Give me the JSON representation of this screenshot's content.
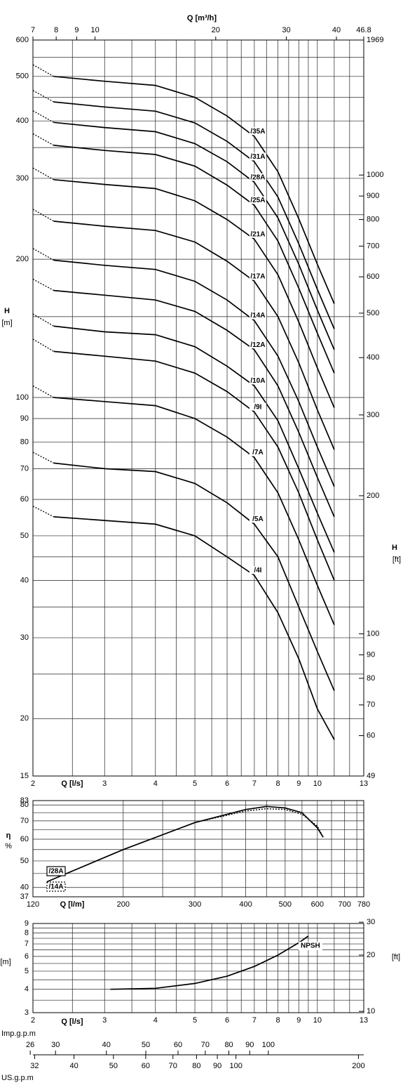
{
  "chart_data": [
    {
      "type": "line",
      "x_label": "Q [l/s]",
      "x2_label": "Q [m³/h]",
      "y_label": "H",
      "y_unit": "[m]",
      "y2_label": "H",
      "y2_unit": "[ft]",
      "log_x": true,
      "log_y": true,
      "color": "#000000",
      "lead_in_style": "dotted",
      "series_labels": "on_curve",
      "xlim": [
        2,
        13
      ],
      "xticks": [
        2,
        3,
        4,
        5,
        6,
        7,
        8,
        9,
        10,
        13
      ],
      "x_minor_grid": [
        2.5,
        3.5,
        4.5,
        5.5,
        6.5,
        7.5,
        8.5,
        9.5,
        11,
        12
      ],
      "x2lim": [
        7,
        46.8
      ],
      "x2ticks": [
        7,
        8,
        9,
        10,
        20,
        30,
        40,
        46.8
      ],
      "ylim": [
        15,
        600
      ],
      "yticks": [
        15,
        20,
        30,
        40,
        50,
        60,
        70,
        80,
        90,
        100,
        200,
        300,
        400,
        500,
        600
      ],
      "y_minor_grid": [
        25,
        35,
        45,
        150,
        250,
        350,
        450,
        550
      ],
      "y2lim": [
        49,
        1969
      ],
      "y2ticks": [
        49,
        60,
        70,
        80,
        90,
        100,
        200,
        300,
        400,
        500,
        600,
        700,
        800,
        900,
        1000,
        1969
      ],
      "x": [
        2,
        2.25,
        3,
        4,
        5,
        6,
        7,
        8,
        9,
        10,
        11
      ],
      "series": [
        {
          "name": "/35A",
          "values": [
            530,
            500,
            488,
            478,
            450,
            410,
            370,
            310,
            245,
            195,
            160
          ]
        },
        {
          "name": "/31A",
          "values": [
            466,
            440,
            429,
            420,
            396,
            361,
            326,
            273,
            216,
            172,
            141
          ]
        },
        {
          "name": "/28A",
          "values": [
            421,
            397,
            387,
            379,
            357,
            326,
            294,
            246,
            195,
            155,
            127
          ]
        },
        {
          "name": "/25A",
          "values": [
            375,
            354,
            345,
            338,
            319,
            290,
            262,
            219,
            173,
            138,
            113
          ]
        },
        {
          "name": "/21A",
          "values": [
            316,
            298,
            291,
            285,
            268,
            244,
            221,
            185,
            146,
            116,
            95
          ]
        },
        {
          "name": "/17A",
          "values": [
            257,
            242,
            236,
            231,
            218,
            198,
            179,
            150,
            119,
            94,
            77
          ]
        },
        {
          "name": "/14A",
          "values": [
            211,
            199,
            194,
            190,
            179,
            163,
            147,
            123,
            98,
            78,
            64
          ]
        },
        {
          "name": "/12A",
          "values": [
            181,
            171,
            167,
            163,
            154,
            140,
            127,
            106,
            84,
            67,
            55
          ]
        },
        {
          "name": "/10A",
          "values": [
            152,
            143,
            139,
            137,
            129,
            117,
            106,
            89,
            70,
            56,
            46
          ]
        },
        {
          "name": "/9I",
          "values": [
            134,
            126,
            123,
            120,
            113,
            103,
            93,
            78,
            62,
            49,
            40
          ]
        },
        {
          "name": "/7A",
          "values": [
            106,
            100,
            98,
            96,
            90,
            82,
            74,
            62,
            49,
            39,
            32
          ]
        },
        {
          "name": "/5A",
          "values": [
            76,
            72,
            70,
            69,
            65,
            59,
            53,
            45,
            35,
            28,
            23
          ]
        },
        {
          "name": "/4I",
          "values": [
            58,
            55,
            54,
            53,
            50,
            45,
            41,
            34,
            27,
            21,
            18
          ]
        }
      ]
    },
    {
      "type": "line",
      "x_label": "Q [l/m]",
      "y_label": "η",
      "y_unit": "%",
      "log_x": true,
      "log_y": true,
      "color": "#000000",
      "legend": "lower left",
      "xlim": [
        120,
        780
      ],
      "xticks": [
        120,
        200,
        300,
        400,
        500,
        600,
        700,
        780
      ],
      "x_minor_grid": [
        250,
        350,
        450,
        550,
        650,
        750
      ],
      "ylim": [
        37,
        83
      ],
      "yticks": [
        37,
        40,
        50,
        60,
        70,
        80,
        83
      ],
      "y_minor_grid": [
        45,
        55,
        65,
        75
      ],
      "x": [
        130,
        200,
        300,
        400,
        450,
        500,
        550,
        600,
        620
      ],
      "series": [
        {
          "name": "/28A",
          "style": "solid",
          "values": [
            42,
            55,
            69,
            77,
            79,
            78,
            75,
            66,
            61
          ]
        },
        {
          "name": "/14A",
          "style": "dotted",
          "values": [
            42,
            55,
            69,
            76,
            77.5,
            77,
            74,
            67,
            61
          ]
        }
      ]
    },
    {
      "type": "line",
      "x_label": "Q [l/s]",
      "y_unit": "[m]",
      "y2_unit": "[ft]",
      "log_x": true,
      "log_y": true,
      "color": "#000000",
      "series_labels": "end",
      "xlim": [
        2,
        13
      ],
      "xticks": [
        2,
        3,
        4,
        5,
        6,
        7,
        8,
        9,
        10,
        13
      ],
      "x_minor_grid": [
        2.5,
        3.5,
        4.5,
        5.5,
        6.5,
        7.5,
        8.5,
        9.5,
        11,
        12
      ],
      "ylim": [
        3,
        9
      ],
      "yticks": [
        3,
        4,
        5,
        6,
        7,
        8,
        9
      ],
      "y_minor_grid": [
        3.5,
        4.5,
        5.5,
        6.5,
        7.5,
        8.5
      ],
      "y2lim": [
        9.84,
        29.53
      ],
      "y2ticks": [
        10,
        20,
        30
      ],
      "x": [
        3.1,
        4,
        5,
        6,
        7,
        8,
        9,
        9.5
      ],
      "series": [
        {
          "name": "NPSH",
          "values": [
            4.0,
            4.05,
            4.3,
            4.7,
            5.3,
            6.1,
            7.1,
            7.7
          ]
        }
      ]
    },
    {
      "type": "scale",
      "log_x": true,
      "scales": [
        {
          "label": "Imp.g.p.m",
          "lim": [
            26.4,
            171.6
          ],
          "ticks": [
            26,
            30,
            40,
            50,
            60,
            70,
            80,
            90,
            100
          ]
        },
        {
          "label": "US.g.p.m",
          "lim": [
            31.7,
            206.1
          ],
          "ticks": [
            32,
            40,
            50,
            60,
            70,
            80,
            90,
            100,
            200
          ]
        }
      ]
    }
  ]
}
